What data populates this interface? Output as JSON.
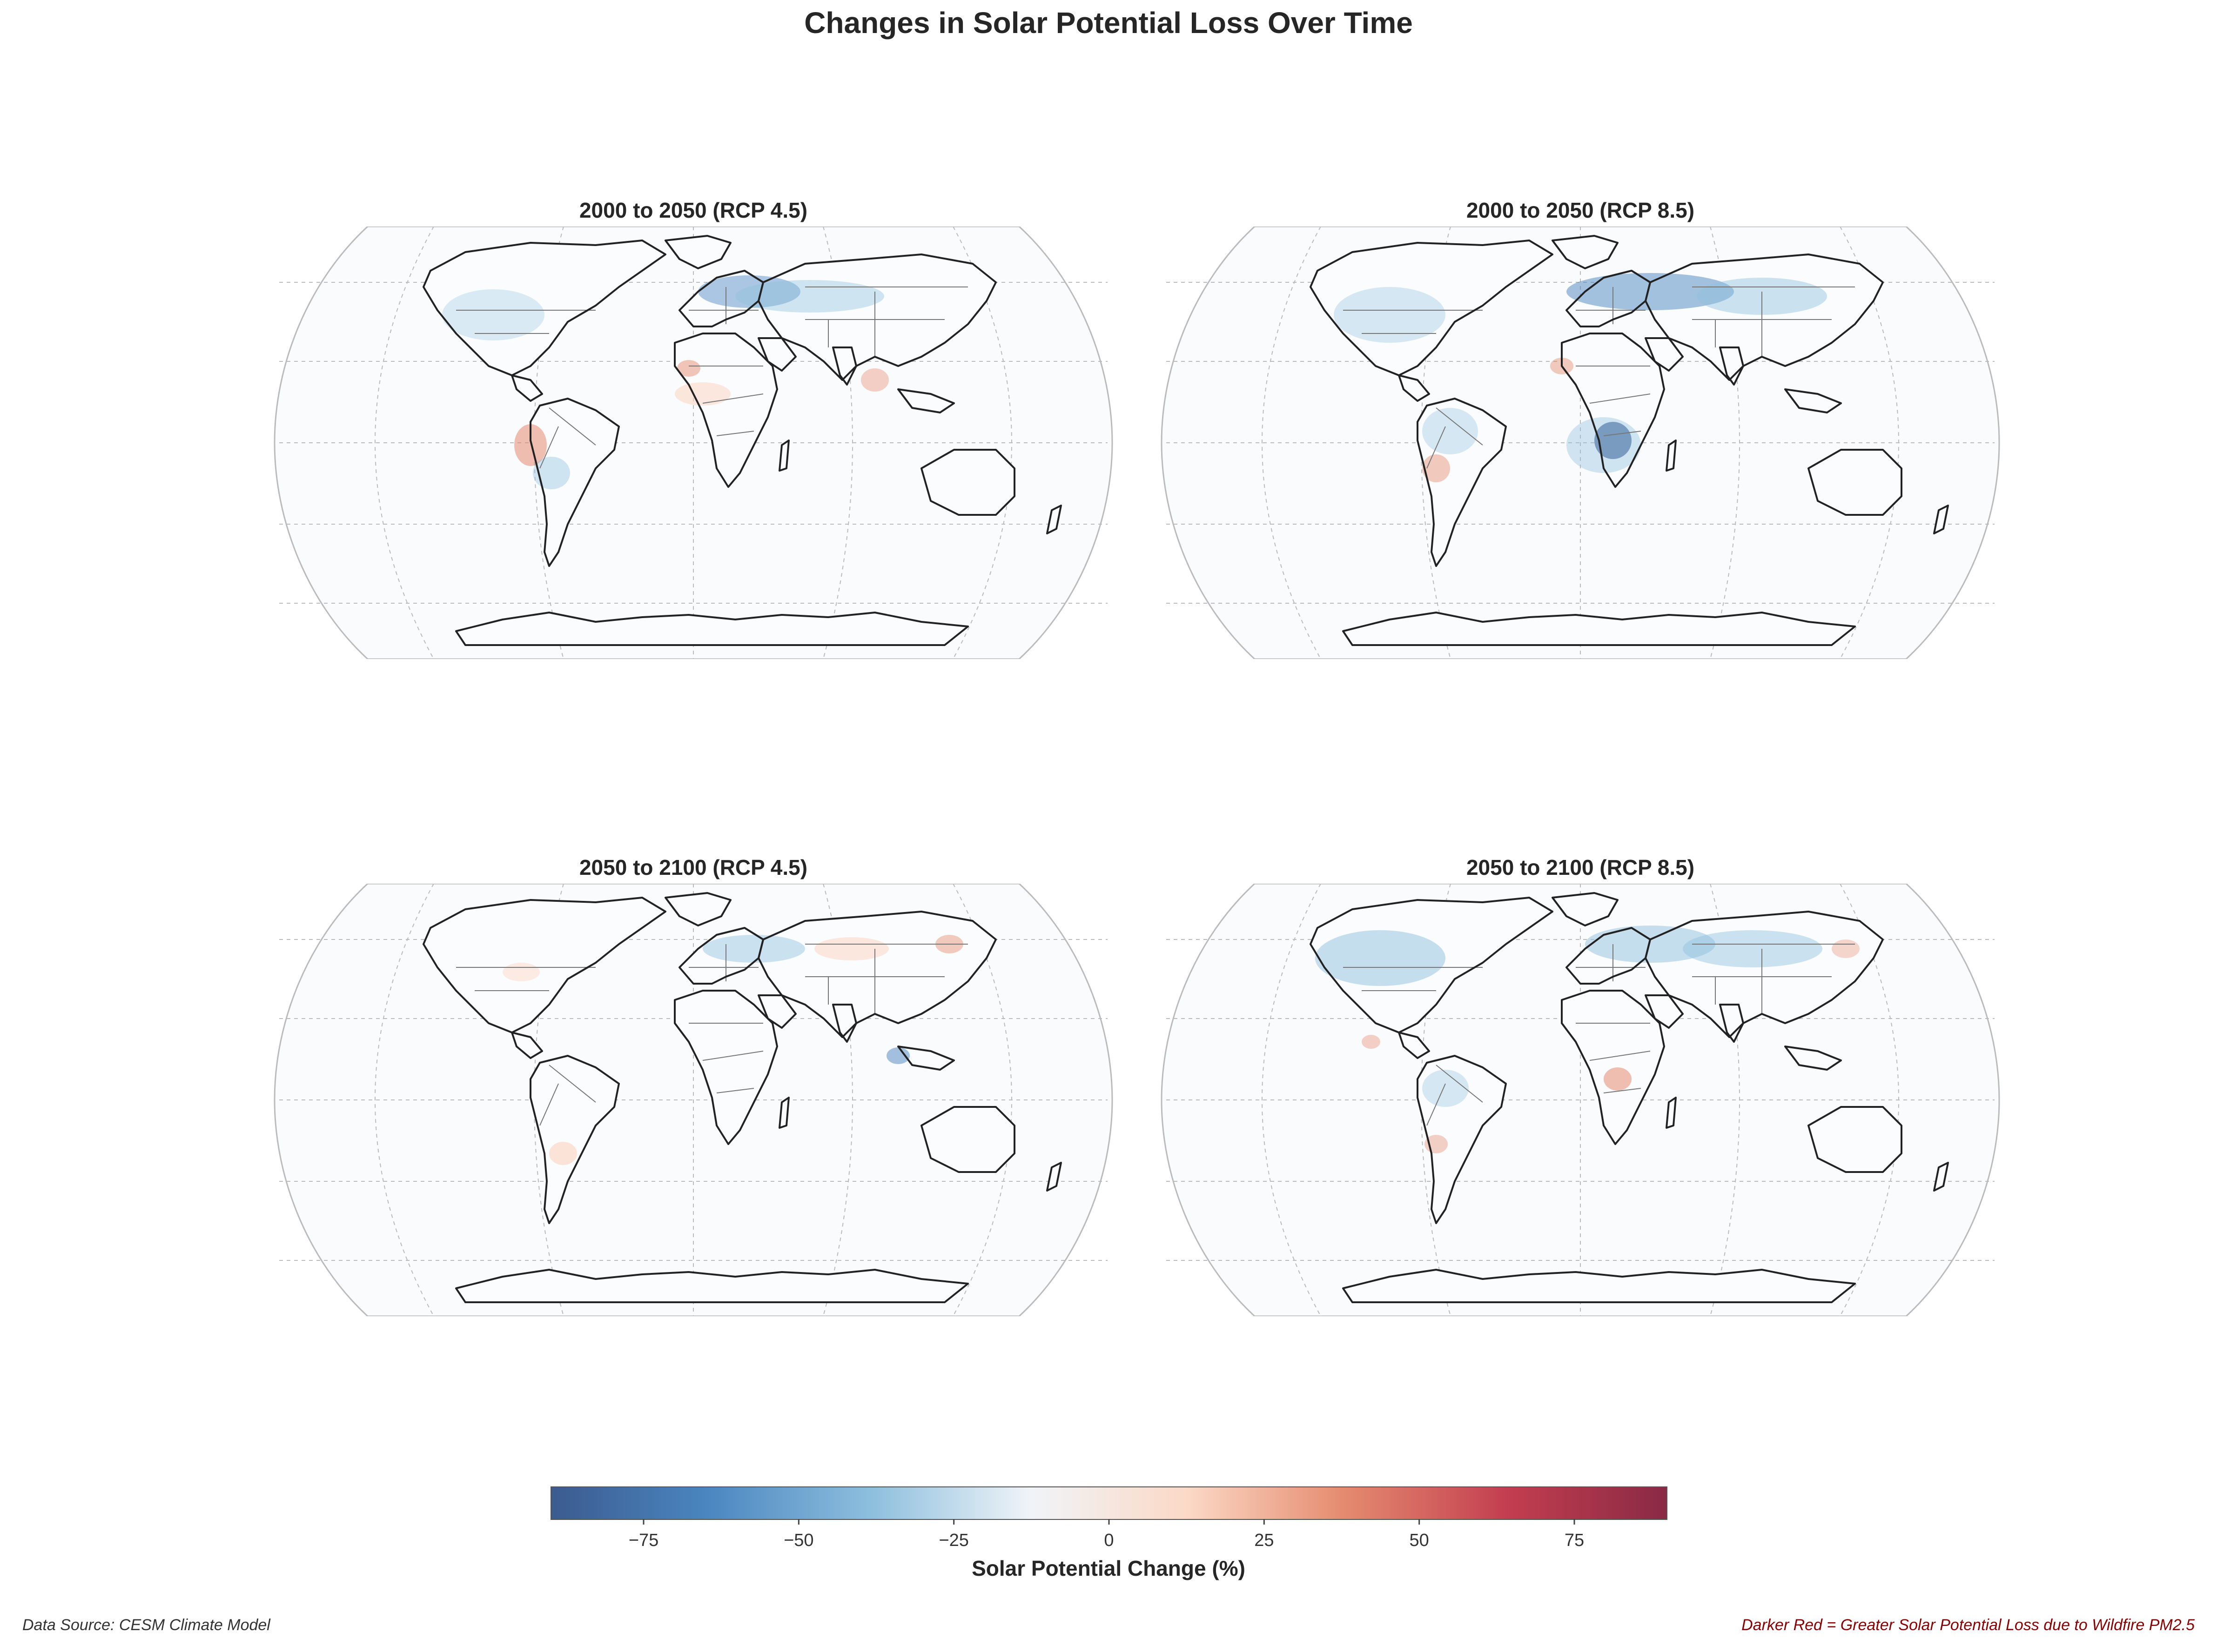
{
  "figure": {
    "title": "Changes in Solar Potential Loss Over Time"
  },
  "panels": [
    {
      "title": "2000 to 2050 (RCP 4.5)"
    },
    {
      "title": "2000 to 2050 (RCP 8.5)"
    },
    {
      "title": "2050 to 2100 (RCP 4.5)"
    },
    {
      "title": "2050 to 2100 (RCP 8.5)"
    }
  ],
  "colorbar": {
    "label": "Solar Potential Change (%)",
    "ticks": [
      "−75",
      "−50",
      "−25",
      "0",
      "25",
      "50",
      "75"
    ],
    "tick_values": [
      -75,
      -50,
      -25,
      0,
      25,
      50,
      75
    ],
    "range": [
      -90,
      90
    ],
    "colormap": [
      "#3b5b8f",
      "#4a86c0",
      "#8fc0de",
      "#f0f4f8",
      "#fbd9c6",
      "#e58b6f",
      "#c23d4f",
      "#8a2a45"
    ]
  },
  "footer": {
    "source": "Data Source: CESM Climate Model",
    "note": "Darker Red = Greater Solar Potential Loss due to Wildfire PM2.5"
  },
  "colors": {
    "coastline": "#222222",
    "borders": "#777777",
    "gridlines": "#bbbbbb",
    "ocean": "#fafbfd",
    "note_text": "#8b0000"
  }
}
